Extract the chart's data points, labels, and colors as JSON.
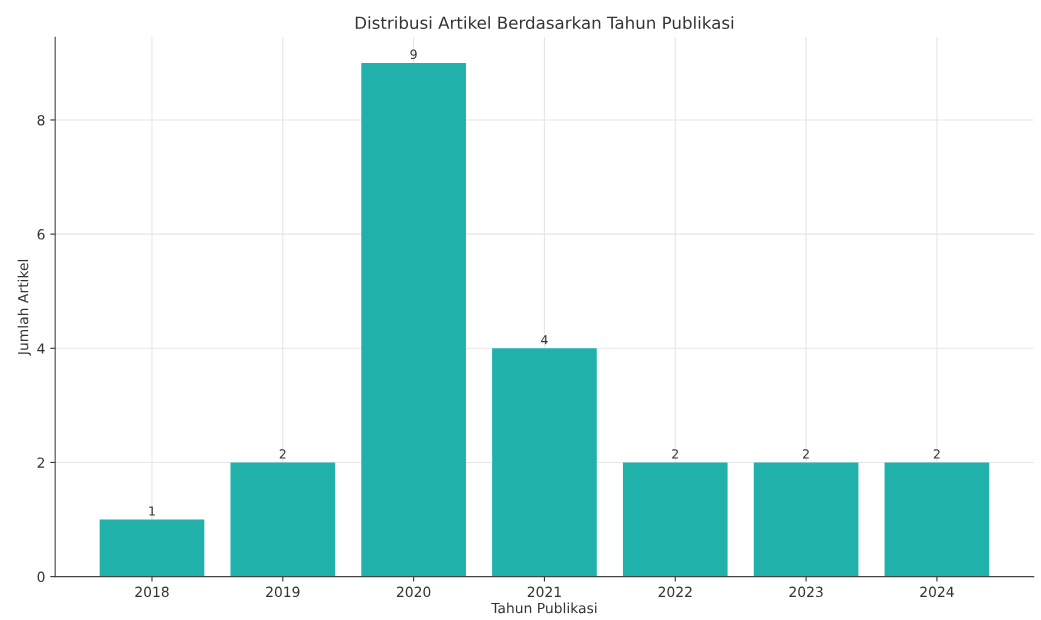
{
  "chart_data": {
    "type": "bar",
    "title": "Distribusi Artikel Berdasarkan Tahun Publikasi",
    "xlabel": "Tahun Publikasi",
    "ylabel": "Jumlah Artikel",
    "categories": [
      "2018",
      "2019",
      "2020",
      "2021",
      "2022",
      "2023",
      "2024"
    ],
    "values": [
      1,
      2,
      9,
      4,
      2,
      2,
      2
    ],
    "color": "#20b2aa",
    "ylim": [
      0,
      9.45
    ],
    "yticks": [
      0,
      2,
      4,
      6,
      8
    ],
    "grid": true,
    "data_labels": true
  }
}
